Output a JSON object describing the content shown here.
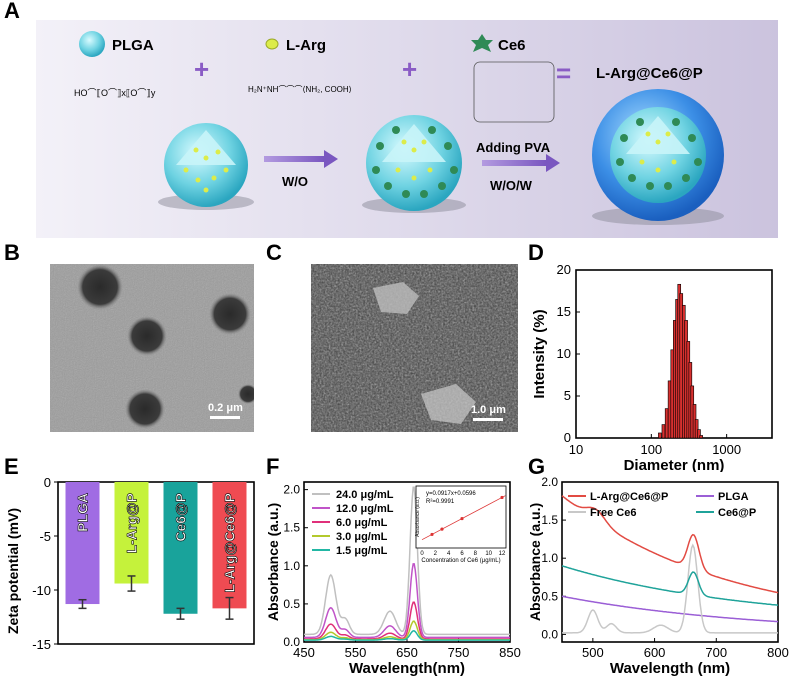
{
  "panel_labels": {
    "a": "A",
    "b": "B",
    "c": "C",
    "d": "D",
    "e": "E",
    "f": "F",
    "g": "G"
  },
  "scheme": {
    "plga": "PLGA",
    "larg": "L-Arg",
    "ce6": "Ce6",
    "product": "L-Arg@Ce6@P",
    "step1": "W/O",
    "step2_top": "Adding PVA",
    "step2_bottom": "W/O/W",
    "plus": "+",
    "equals": "=",
    "colors": {
      "plga": "#7fd9e4",
      "larg": "#dcec4a",
      "ce6": "#2f8a56",
      "arrow": "#8a6fc2",
      "plus": "#8a5cc5"
    }
  },
  "tem": {
    "scalebar": "0.2 μm"
  },
  "sem": {
    "scalebar": "1.0 μm"
  },
  "chart_data": [
    {
      "id": "D",
      "type": "bar",
      "xscale": "log",
      "xlabel": "Diameter (nm)",
      "ylabel": "Intensity (%)",
      "xlim": [
        10,
        4000
      ],
      "ylim": [
        0,
        20
      ],
      "xticks": [
        "10",
        "100",
        "1000"
      ],
      "yticks": [
        "0",
        "5",
        "10",
        "15",
        "20"
      ],
      "x": [
        130,
        145,
        160,
        175,
        190,
        205,
        220,
        235,
        250,
        270,
        290,
        310,
        330,
        350,
        375,
        400,
        430,
        460
      ],
      "values": [
        0.6,
        1.6,
        3.5,
        6.8,
        10.5,
        14.0,
        16.5,
        18.3,
        17.2,
        15.8,
        14.0,
        11.5,
        9.0,
        6.2,
        4.0,
        2.2,
        1.0,
        0.3
      ],
      "color": "#d8302f"
    },
    {
      "id": "E",
      "type": "bar",
      "ylabel": "Zeta potential (mV)",
      "ylim": [
        -15,
        0
      ],
      "yticks": [
        "0",
        "-5",
        "-10",
        "-15"
      ],
      "categories": [
        "PLGA",
        "L-Arg@P",
        "Ce6@P",
        "L-Arg@Ce6@P"
      ],
      "values": [
        -11.3,
        -9.4,
        -12.2,
        -11.7
      ],
      "errors": [
        0.4,
        0.7,
        0.5,
        1.0
      ],
      "colors": [
        "#a06ce3",
        "#c5f23b",
        "#19a39b",
        "#ef4b52"
      ]
    },
    {
      "id": "F",
      "type": "line",
      "xlabel": "Wavelength(nm)",
      "ylabel": "Absorbance (a.u.)",
      "xlim": [
        450,
        850
      ],
      "ylim": [
        0,
        2.1
      ],
      "xticks": [
        "450",
        "550",
        "650",
        "750",
        "850"
      ],
      "yticks": [
        "0.0",
        "0.5",
        "1.0",
        "1.5",
        "2.0"
      ],
      "series": [
        {
          "name": "24.0 μg/mL",
          "color": "#c0c0c0",
          "scale": 1.0
        },
        {
          "name": "12.0 μg/mL",
          "color": "#c054c8",
          "scale": 0.5
        },
        {
          "name": "6.0 μg/mL",
          "color": "#e0307a",
          "scale": 0.25
        },
        {
          "name": "3.0 μg/mL",
          "color": "#b3c92c",
          "scale": 0.125
        },
        {
          "name": "1.5 μg/mL",
          "color": "#22b7a4",
          "scale": 0.0625
        }
      ],
      "peaks": {
        "soret": [
          502,
          0.8
        ],
        "qband": [
          663,
          2.1
        ],
        "baseline": 0.1
      },
      "inset": {
        "title": "y=0.0917x+0.0596",
        "r2": "R²=0.9991",
        "xlabel": "Concentration of Ce6 (μg/mL)",
        "ylabel": "Absorbance (a.u.)",
        "xticks": [
          "0",
          "2",
          "4",
          "6",
          "8",
          "10",
          "12"
        ],
        "x": [
          1.5,
          3,
          6,
          12
        ],
        "y": [
          0.197,
          0.335,
          0.61,
          1.16
        ]
      }
    },
    {
      "id": "G",
      "type": "line",
      "xlabel": "Wavelength (nm)",
      "ylabel": "Absorbance (a.u.)",
      "xlim": [
        450,
        800
      ],
      "ylim": [
        -0.1,
        2.0
      ],
      "xticks": [
        "500",
        "600",
        "700",
        "800"
      ],
      "yticks": [
        "0.0",
        "0.5",
        "1.0",
        "1.5",
        "2.0"
      ],
      "series": [
        {
          "name": "L-Arg@Ce6@P",
          "color": "#e24b43"
        },
        {
          "name": "PLGA",
          "color": "#9b5fd6"
        },
        {
          "name": "Free Ce6",
          "color": "#c8c8c8"
        },
        {
          "name": "Ce6@P",
          "color": "#1fa39a"
        }
      ]
    }
  ]
}
